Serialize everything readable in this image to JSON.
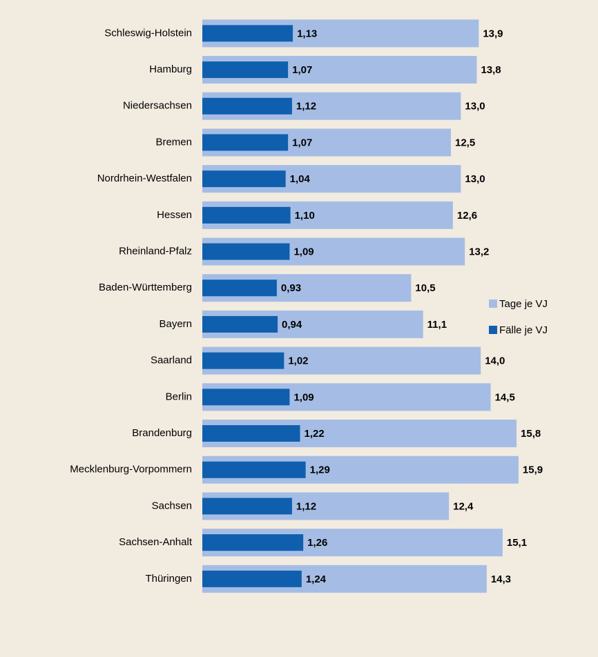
{
  "chart_data": {
    "type": "bar",
    "orientation": "horizontal",
    "overlay": true,
    "categories": [
      "Schleswig-Holstein",
      "Hamburg",
      "Niedersachsen",
      "Bremen",
      "Nordrhein-Westfalen",
      "Hessen",
      "Rheinland-Pfalz",
      "Baden-Württemberg",
      "Bayern",
      "Saarland",
      "Berlin",
      "Brandenburg",
      "Mecklenburg-Vorpommern",
      "Sachsen",
      "Sachsen-Anhalt",
      "Thüringen"
    ],
    "series": [
      {
        "name": "Tage je VJ",
        "color": "#a5bde4",
        "values": [
          13.9,
          13.8,
          13.0,
          12.5,
          13.0,
          12.6,
          13.2,
          10.5,
          11.1,
          14.0,
          14.5,
          15.8,
          15.9,
          12.4,
          15.1,
          14.3
        ],
        "value_labels": [
          "13,9",
          "13,8",
          "13,0",
          "12,5",
          "13,0",
          "12,6",
          "13,2",
          "10,5",
          "11,1",
          "14,0",
          "14,5",
          "15,8",
          "15,9",
          "12,4",
          "15,1",
          "14,3"
        ]
      },
      {
        "name": "Fälle je VJ",
        "color": "#0f5fae",
        "axis": "x2",
        "values": [
          1.13,
          1.07,
          1.12,
          1.07,
          1.04,
          1.1,
          1.09,
          0.93,
          0.94,
          1.02,
          1.09,
          1.22,
          1.29,
          1.12,
          1.26,
          1.24
        ],
        "value_labels": [
          "1,13",
          "1,07",
          "1,12",
          "1,07",
          "1,04",
          "1,10",
          "1,09",
          "0,93",
          "0,94",
          "1,02",
          "1,09",
          "1,22",
          "1,29",
          "1,12",
          "1,26",
          "1,24"
        ]
      }
    ],
    "legend": "right"
  }
}
